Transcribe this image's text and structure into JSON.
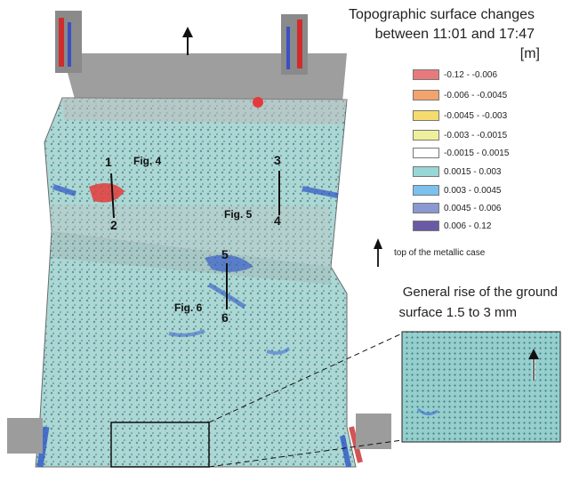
{
  "title": {
    "line1": "Topographic surface changes",
    "line2": "between 11:01 and 17:47",
    "unit": "[m]"
  },
  "legend": [
    {
      "label": "-0.12 - -0.006",
      "color": "#e87a7c"
    },
    {
      "label": "-0.006 - -0.0045",
      "color": "#f2a36e"
    },
    {
      "label": "-0.0045 - -0.003",
      "color": "#f6dc6c"
    },
    {
      "label": "-0.003 - -0.0015",
      "color": "#eef09c"
    },
    {
      "label": "-0.0015 - 0.0015",
      "color": "#ffffff"
    },
    {
      "label": "0.0015 - 0.003",
      "color": "#99d6d6"
    },
    {
      "label": "0.003 - 0.0045",
      "color": "#7cc0ee"
    },
    {
      "label": "0.0045 - 0.006",
      "color": "#8b99d0"
    },
    {
      "label": "0.006 - 0.12",
      "color": "#6a5aa6"
    }
  ],
  "orientation_note": "top of the metallic case",
  "rise_note": {
    "line1": "General rise of the ground",
    "line2": "surface  1.5 to 3 mm"
  },
  "figure_refs": [
    "Fig. 4",
    "Fig. 5",
    "Fig. 6"
  ],
  "profile_points": [
    "1",
    "2",
    "3",
    "4",
    "5",
    "6"
  ],
  "icons": {
    "north_arrow": "up-arrow-icon",
    "case_arrow": "up-arrow-icon",
    "inset_arrow": "up-arrow-icon"
  }
}
